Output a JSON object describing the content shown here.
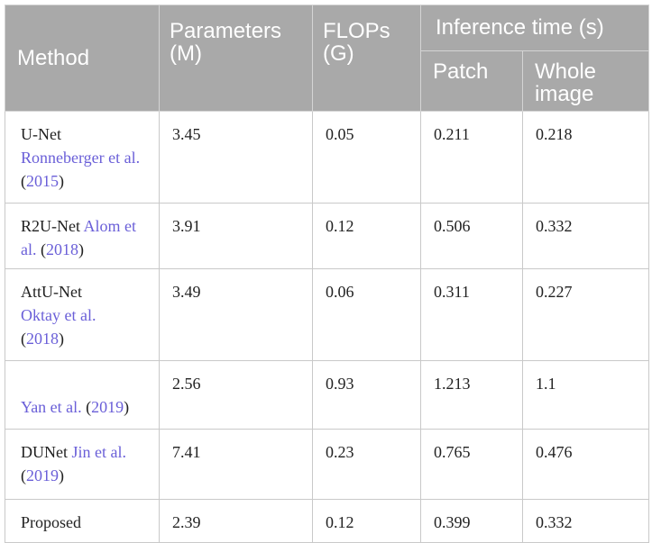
{
  "headers": {
    "method": "Method",
    "parameters": "Parameters (M)",
    "flops": "FLOPs (G)",
    "inference_time": "Inference time (s)",
    "patch": "Patch",
    "whole_image": "Whole image"
  },
  "rows": [
    {
      "method_name": "U-Net",
      "citation_author": "Ronneberger et al.",
      "citation_year": "2015",
      "parameters": "3.45",
      "flops": "0.05",
      "patch": "0.211",
      "whole_image": "0.218"
    },
    {
      "method_name": "R2U-Net",
      "citation_author": "Alom et al.",
      "citation_year": "2018",
      "parameters": "3.91",
      "flops": "0.12",
      "patch": "0.506",
      "whole_image": "0.332"
    },
    {
      "method_name": "AttU-Net",
      "citation_author": "Oktay et al.",
      "citation_year": "2018",
      "parameters": "3.49",
      "flops": "0.06",
      "patch": "0.311",
      "whole_image": "0.227"
    },
    {
      "method_name": "",
      "citation_author": "Yan et al.",
      "citation_year": "2019",
      "parameters": "2.56",
      "flops": "0.93",
      "patch": "1.213",
      "whole_image": "1.1"
    },
    {
      "method_name": "DUNet",
      "citation_author": "Jin et al.",
      "citation_year": "2019",
      "parameters": "7.41",
      "flops": "0.23",
      "patch": "0.765",
      "whole_image": "0.476"
    },
    {
      "method_name": "Proposed",
      "citation_author": "",
      "citation_year": "",
      "parameters": "2.39",
      "flops": "0.12",
      "patch": "0.399",
      "whole_image": "0.332"
    }
  ],
  "colors": {
    "header_background": "#a9a9a9",
    "header_text": "#ffffff",
    "citation_link": "#6a5fd8",
    "cell_border": "#c9c9c9"
  }
}
